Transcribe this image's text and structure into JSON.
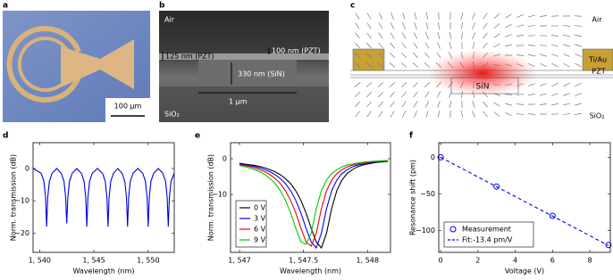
{
  "panel_labels": [
    "a",
    "b",
    "c",
    "d",
    "e",
    "f"
  ],
  "image_a": {
    "scale_bar": "100 µm"
  },
  "image_b": {
    "top": "Air",
    "left_layer": "125 nm (PZT)",
    "right_layer": "100 nm (PZT)",
    "core": "330 nm (SiN)",
    "width": "1 µm",
    "bottom": "SiO₂"
  },
  "image_c": {
    "top": "Air",
    "electrode": "Ti/Au",
    "layer": "PZT",
    "core": "SiN",
    "bottom": "SiO₂"
  },
  "chart_data": [
    {
      "type": "line",
      "xlabel": "Wavelength (nm)",
      "ylabel": "Norm. transmission (dB)",
      "xlim": [
        1539.4,
        1552.4
      ],
      "ylim": [
        -26,
        8
      ],
      "xticks": [
        {
          "value": 1540,
          "label": "1, 540"
        },
        {
          "value": 1545,
          "label": "1, 545"
        },
        {
          "value": 1550,
          "label": "1, 550"
        }
      ],
      "yticks": [
        0,
        {
          "value": -10,
          "label": "−10"
        },
        {
          "value": -20,
          "label": "−20"
        }
      ],
      "x": [
        1539.4,
        1540.15,
        1540.4,
        1540.55,
        1540.65,
        1540.75,
        1540.9,
        1541.15,
        1541.58,
        1542.0,
        1542.25,
        1542.4,
        1542.5,
        1542.6,
        1542.75,
        1543.0,
        1543.43,
        1543.85,
        1544.1,
        1544.25,
        1544.35,
        1544.45,
        1544.6,
        1544.85,
        1545.33,
        1545.8,
        1546.05,
        1546.2,
        1546.3,
        1546.4,
        1546.55,
        1546.8,
        1547.2,
        1547.6,
        1547.85,
        1548.0,
        1548.1,
        1548.2,
        1548.35,
        1548.6,
        1549.05,
        1549.5,
        1549.75,
        1549.9,
        1550.0,
        1550.1,
        1550.25,
        1550.5,
        1550.93,
        1551.35,
        1551.6,
        1551.75,
        1551.85,
        1551.95,
        1552.1,
        1552.4
      ],
      "series": [
        {
          "color": "#0000dd",
          "values": [
            0,
            -1.5,
            -4,
            -9,
            -18,
            -9,
            -4,
            -1.5,
            0,
            -1.5,
            -4,
            -9,
            -17,
            -9,
            -4,
            -1.5,
            0,
            -1.5,
            -4,
            -9,
            -18,
            -9,
            -4,
            -1.5,
            0,
            -1.5,
            -4,
            -9,
            -18,
            -9,
            -4,
            -1.5,
            0,
            -1.5,
            -4,
            -9,
            -18,
            -9,
            -4,
            -1.5,
            0,
            -1.5,
            -4,
            -9,
            -18,
            -9,
            -4,
            -1.5,
            0,
            -1.5,
            -4,
            -9,
            -18,
            -9,
            -4,
            -1.5
          ]
        }
      ]
    },
    {
      "type": "line",
      "xlabel": "Wavelength (nm)",
      "ylabel": "Norm. transmission (dB)",
      "xlim": [
        1546.93,
        1548.18
      ],
      "ylim": [
        -26.25,
        4.5
      ],
      "xticks": [
        {
          "value": 1547,
          "label": "1, 547"
        },
        {
          "value": 1547.5,
          "label": "1, 547.5"
        },
        {
          "value": 1548,
          "label": "1, 548"
        }
      ],
      "yticks": [
        0,
        {
          "value": -10,
          "label": "−10"
        }
      ],
      "legend": "lower left",
      "x": [
        1547,
        1547.04,
        1547.08,
        1547.12,
        1547.16,
        1547.2,
        1547.24,
        1547.28,
        1547.32,
        1547.36,
        1547.4,
        1547.44,
        1547.48,
        1547.52,
        1547.56,
        1547.6,
        1547.64,
        1547.68,
        1547.72,
        1547.76,
        1547.8,
        1547.84,
        1547.88,
        1547.92,
        1547.96,
        1548,
        1548.04,
        1548.08,
        1548.12,
        1548.16
      ],
      "series": [
        {
          "name": "0 V",
          "color": "#000000",
          "values": [
            -1.3,
            -1.5,
            -1.7,
            -1.9,
            -2.2,
            -2.6,
            -3.1,
            -3.7,
            -4.5,
            -5.6,
            -7.0,
            -9.0,
            -11.7,
            -15.2,
            -19.5,
            -23.3,
            -25,
            -20.9,
            -14.0,
            -9.0,
            -6.0,
            -4.2,
            -3.1,
            -2.3,
            -1.8,
            -1.5,
            -1.2,
            -1.0,
            -0.85,
            -0.73
          ]
        },
        {
          "name": "3 V",
          "color": "#0000ee",
          "values": [
            -1.5,
            -1.7,
            -1.9,
            -2.2,
            -2.6,
            -3.1,
            -3.7,
            -4.5,
            -5.6,
            -7.0,
            -9.0,
            -11.7,
            -15.2,
            -19.5,
            -23.3,
            -25,
            -20.9,
            -14.0,
            -9.0,
            -6.0,
            -4.2,
            -3.1,
            -2.3,
            -1.8,
            -1.5,
            -1.2,
            -1.0,
            -0.85,
            -0.73,
            -0.63
          ]
        },
        {
          "name": "6 V",
          "color": "#ee0000",
          "values": [
            -1.7,
            -1.9,
            -2.2,
            -2.6,
            -3.1,
            -3.7,
            -4.5,
            -5.6,
            -7.0,
            -9.0,
            -11.7,
            -15.2,
            -19.5,
            -23.3,
            -24.5,
            -20.9,
            -14.0,
            -9.0,
            -6.0,
            -4.2,
            -3.1,
            -2.3,
            -1.8,
            -1.5,
            -1.2,
            -1.0,
            -0.85,
            -0.73,
            -0.63,
            -0.55
          ]
        },
        {
          "name": "9 V",
          "color": "#00cc00",
          "values": [
            -1.9,
            -2.2,
            -2.6,
            -3.1,
            -3.7,
            -4.5,
            -5.6,
            -7.0,
            -9.0,
            -11.7,
            -15.2,
            -19.5,
            -23.3,
            -24,
            -20.9,
            -14.0,
            -9.0,
            -6.0,
            -4.2,
            -3.1,
            -2.3,
            -1.8,
            -1.5,
            -1.2,
            -1.0,
            -0.85,
            -0.73,
            -0.63,
            -0.55,
            -0.48
          ]
        }
      ]
    },
    {
      "type": "line",
      "xlabel": "Voltage (V)",
      "ylabel": "Resonance shift (pm)",
      "xlim": [
        -0.1,
        9.1
      ],
      "ylim": [
        -130,
        20
      ],
      "xticks": [
        0,
        2,
        4,
        6,
        8
      ],
      "yticks": [
        0,
        {
          "value": -50,
          "label": "−50"
        },
        {
          "value": -100,
          "label": "−100"
        }
      ],
      "legend": "lower left",
      "series": [
        {
          "name": "Measurement",
          "color": "#0000ee",
          "marker": "circle",
          "linestyle": "none",
          "x": [
            0,
            3,
            6,
            9
          ],
          "values": [
            0,
            -40,
            -80,
            -120
          ]
        },
        {
          "name": "Fit:-13.4 pm/V",
          "color": "#0000ee",
          "linestyle": "dashed",
          "x": [
            0,
            9
          ],
          "values": [
            0,
            -120.6
          ]
        }
      ]
    }
  ]
}
